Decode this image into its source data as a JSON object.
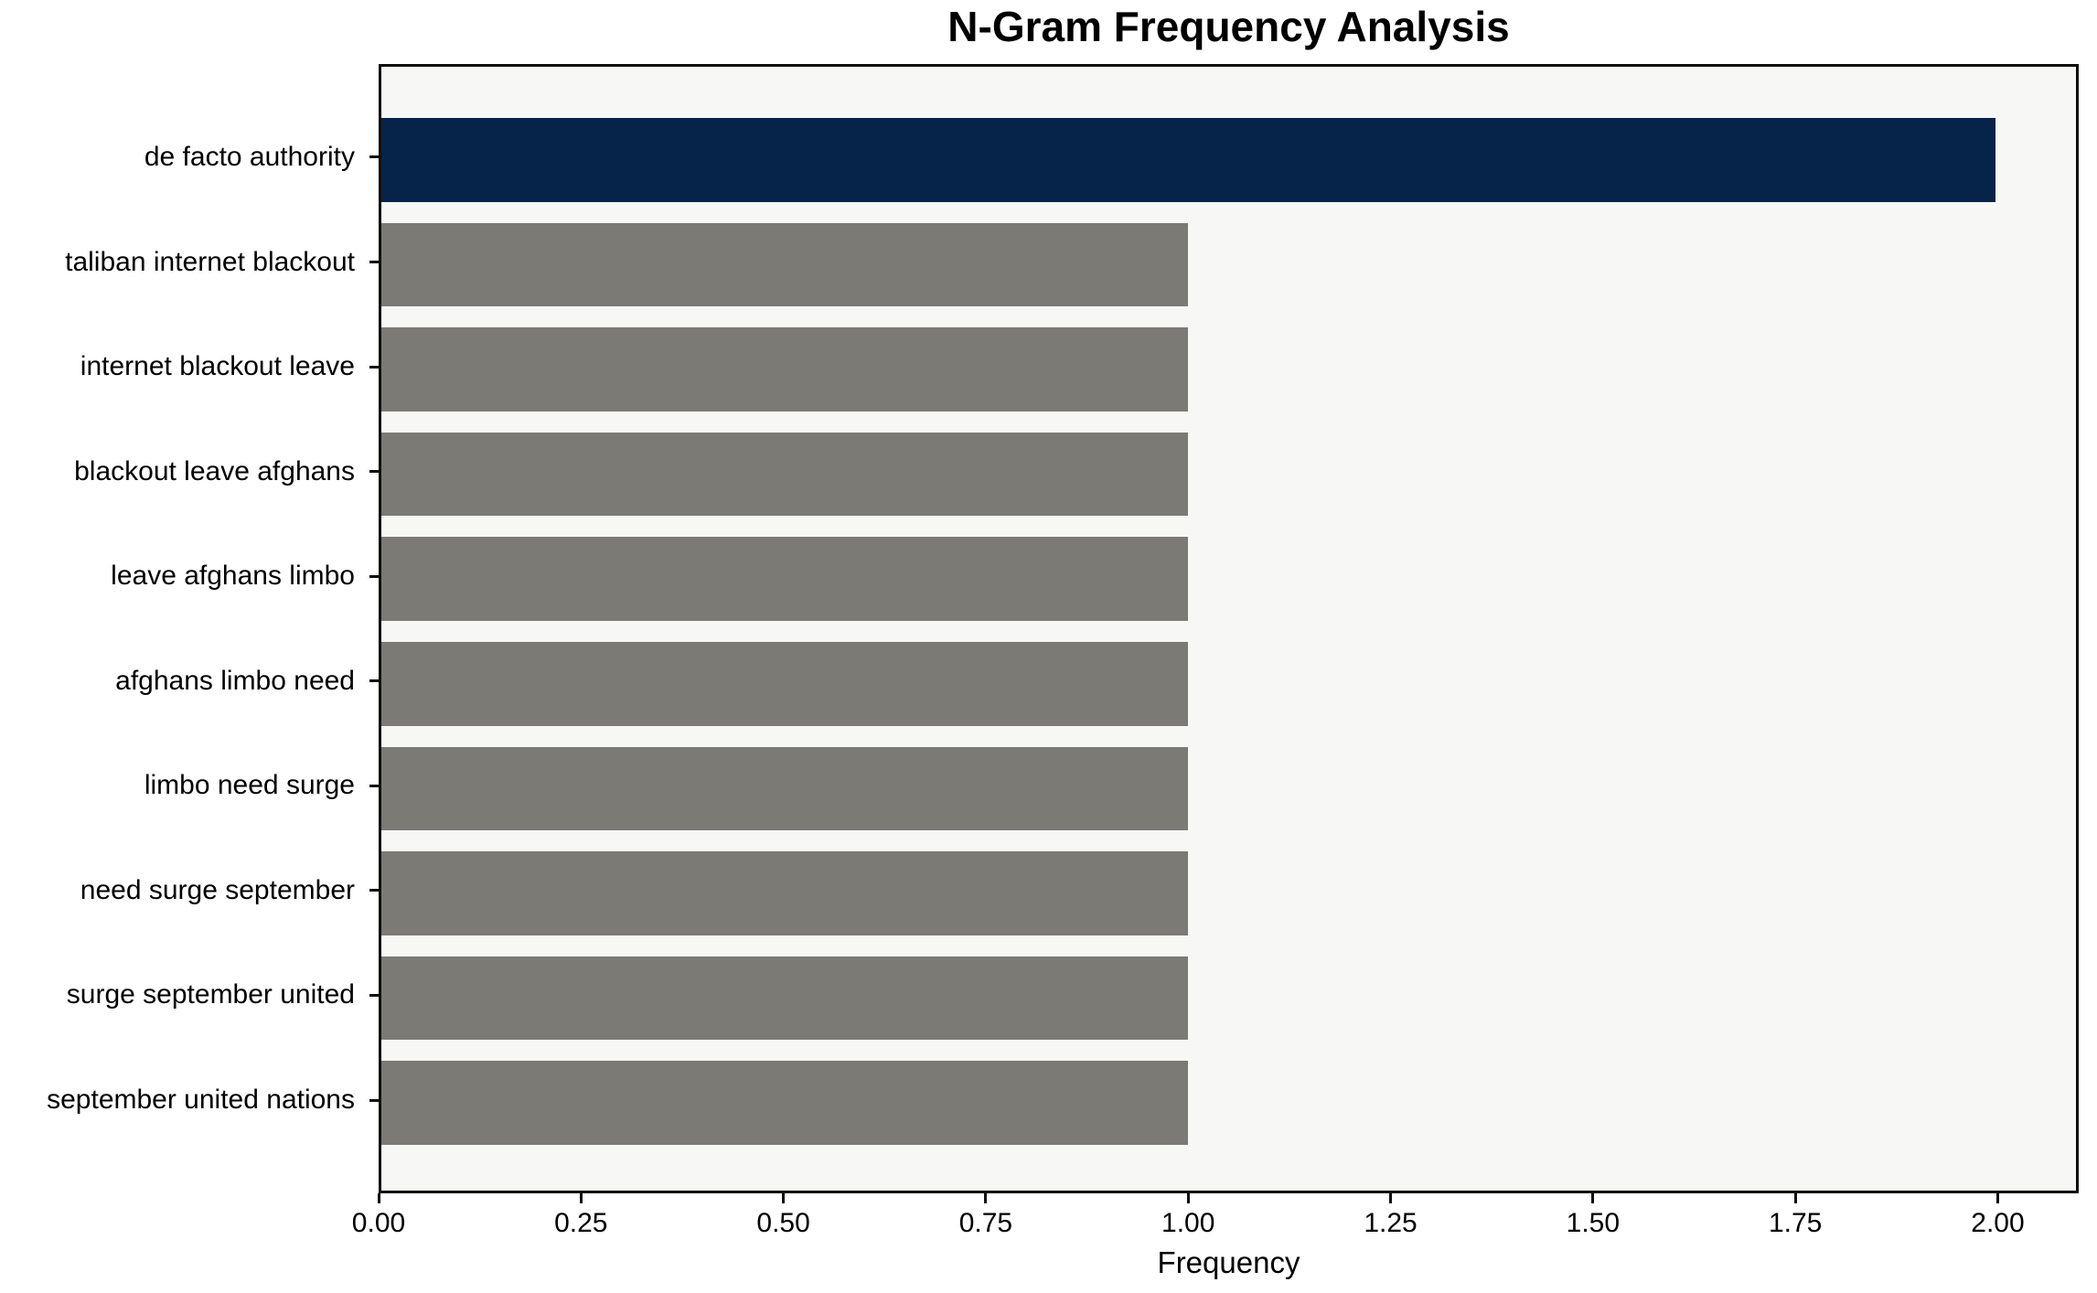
{
  "chart_data": {
    "type": "bar",
    "orientation": "horizontal",
    "title": "N-Gram Frequency Analysis",
    "xlabel": "Frequency",
    "ylabel": "",
    "categories": [
      "de facto authority",
      "taliban internet blackout",
      "internet blackout leave",
      "blackout leave afghans",
      "leave afghans limbo",
      "afghans limbo need",
      "limbo need surge",
      "need surge september",
      "surge september united",
      "september united nations"
    ],
    "values": [
      2,
      1,
      1,
      1,
      1,
      1,
      1,
      1,
      1,
      1
    ],
    "bar_colors": [
      "#062449",
      "#7b7a75",
      "#7b7a75",
      "#7b7a75",
      "#7b7a75",
      "#7b7a75",
      "#7b7a75",
      "#7b7a75",
      "#7b7a75",
      "#7b7a75"
    ],
    "xlim": [
      0,
      2.1
    ],
    "x_tick_values": [
      0.0,
      0.25,
      0.5,
      0.75,
      1.0,
      1.25,
      1.5,
      1.75,
      2.0
    ],
    "x_tick_labels": [
      "0.00",
      "0.25",
      "0.50",
      "0.75",
      "1.00",
      "1.25",
      "1.50",
      "1.75",
      "2.00"
    ],
    "grid": false,
    "legend": null,
    "colors": {
      "highlight_bar": "#062449",
      "default_bar": "#7b7a75",
      "plot_background": "#f7f7f6",
      "figure_background": "#ffffff",
      "spine": "#0d0d0d",
      "text": "#000000"
    }
  }
}
